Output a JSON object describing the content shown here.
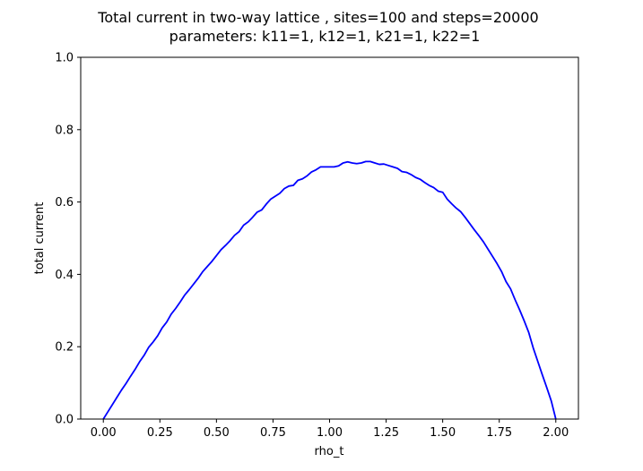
{
  "chart_data": {
    "type": "line",
    "title_line1": "Total current in two-way lattice , sites=100 and steps=20000",
    "title_line2": "parameters: k11=1, k12=1, k21=1, k22=1",
    "xlabel": "rho_t",
    "ylabel": "total current",
    "xlim": [
      -0.1,
      2.1
    ],
    "ylim": [
      0.0,
      1.0
    ],
    "grid": false,
    "line_color": "#0000ff",
    "x_ticks": [
      {
        "value": 0.0,
        "label": "0.00"
      },
      {
        "value": 0.25,
        "label": "0.25"
      },
      {
        "value": 0.5,
        "label": "0.50"
      },
      {
        "value": 0.75,
        "label": "0.75"
      },
      {
        "value": 1.0,
        "label": "1.00"
      },
      {
        "value": 1.25,
        "label": "1.25"
      },
      {
        "value": 1.5,
        "label": "1.50"
      },
      {
        "value": 1.75,
        "label": "1.75"
      },
      {
        "value": 2.0,
        "label": "2.00"
      }
    ],
    "y_ticks": [
      {
        "value": 0.0,
        "label": "0.0"
      },
      {
        "value": 0.2,
        "label": "0.2"
      },
      {
        "value": 0.4,
        "label": "0.4"
      },
      {
        "value": 0.6,
        "label": "0.6"
      },
      {
        "value": 0.8,
        "label": "0.8"
      },
      {
        "value": 1.0,
        "label": "1.0"
      }
    ],
    "series": [
      {
        "x": [
          0.0,
          0.02,
          0.04,
          0.06,
          0.08,
          0.1,
          0.12,
          0.14,
          0.16,
          0.18,
          0.2,
          0.22,
          0.24,
          0.26,
          0.28,
          0.3,
          0.32,
          0.34,
          0.36,
          0.38,
          0.4,
          0.42,
          0.44,
          0.46,
          0.48,
          0.5,
          0.52,
          0.54,
          0.56,
          0.58,
          0.6,
          0.62,
          0.64,
          0.66,
          0.68,
          0.7,
          0.72,
          0.74,
          0.76,
          0.78,
          0.8,
          0.82,
          0.84,
          0.86,
          0.88,
          0.9,
          0.92,
          0.94,
          0.96,
          0.98,
          1.0,
          1.02,
          1.04,
          1.06,
          1.08,
          1.1,
          1.12,
          1.14,
          1.16,
          1.18,
          1.2,
          1.22,
          1.24,
          1.26,
          1.28,
          1.3,
          1.32,
          1.34,
          1.36,
          1.38,
          1.4,
          1.42,
          1.44,
          1.46,
          1.48,
          1.5,
          1.52,
          1.54,
          1.56,
          1.58,
          1.6,
          1.62,
          1.64,
          1.66,
          1.68,
          1.7,
          1.72,
          1.74,
          1.76,
          1.78,
          1.8,
          1.82,
          1.84,
          1.86,
          1.88,
          1.9,
          1.92,
          1.94,
          1.96,
          1.98,
          2.0
        ],
        "y": [
          0.0,
          0.02,
          0.04,
          0.06,
          0.08,
          0.098,
          0.118,
          0.137,
          0.158,
          0.176,
          0.198,
          0.213,
          0.23,
          0.252,
          0.268,
          0.29,
          0.306,
          0.324,
          0.343,
          0.358,
          0.374,
          0.39,
          0.408,
          0.422,
          0.436,
          0.452,
          0.468,
          0.48,
          0.493,
          0.508,
          0.518,
          0.536,
          0.545,
          0.558,
          0.572,
          0.578,
          0.594,
          0.608,
          0.616,
          0.624,
          0.637,
          0.644,
          0.646,
          0.66,
          0.664,
          0.672,
          0.683,
          0.689,
          0.697,
          0.697,
          0.697,
          0.697,
          0.7,
          0.708,
          0.711,
          0.708,
          0.706,
          0.708,
          0.712,
          0.712,
          0.708,
          0.704,
          0.705,
          0.701,
          0.697,
          0.693,
          0.684,
          0.682,
          0.676,
          0.668,
          0.663,
          0.654,
          0.646,
          0.64,
          0.63,
          0.627,
          0.608,
          0.595,
          0.583,
          0.573,
          0.557,
          0.54,
          0.523,
          0.507,
          0.49,
          0.47,
          0.45,
          0.43,
          0.408,
          0.38,
          0.36,
          0.33,
          0.302,
          0.272,
          0.24,
          0.197,
          0.16,
          0.123,
          0.087,
          0.05,
          0.0
        ]
      }
    ]
  }
}
